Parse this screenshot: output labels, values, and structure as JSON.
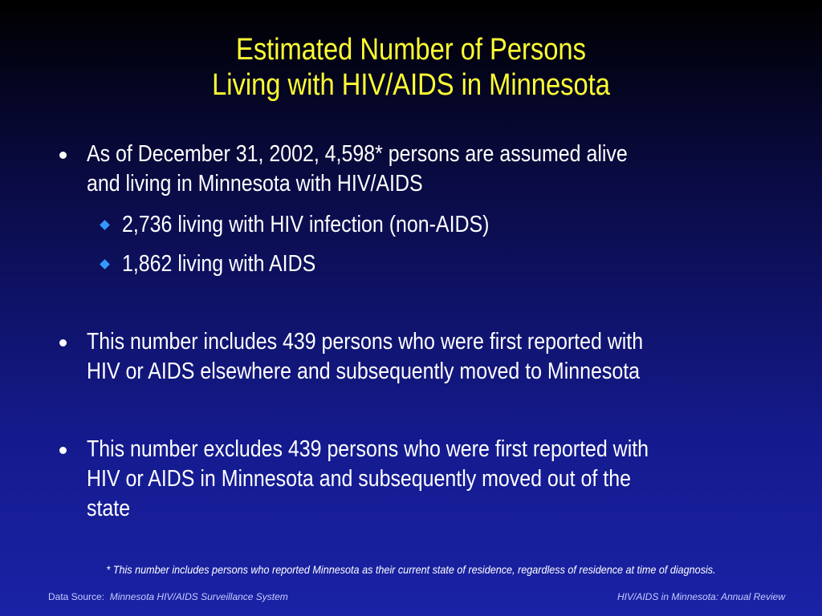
{
  "slide": {
    "title_line1": "Estimated Number of Persons",
    "title_line2": "Living with HIV/AIDS in Minnesota",
    "bullets": [
      {
        "lines": [
          "As of December 31, 2002, 4,598* persons are assumed alive",
          "and living in Minnesota with HIV/AIDS"
        ],
        "subitems": [
          "2,736 living with HIV infection (non-AIDS)",
          "1,862 living with AIDS"
        ]
      },
      {
        "lines": [
          "This number includes 439 persons who were first reported with",
          "HIV or AIDS elsewhere and subsequently moved to Minnesota"
        ]
      },
      {
        "lines": [
          "This number excludes 439 persons who were first reported with",
          "HIV or AIDS in Minnesota and subsequently moved out of the",
          "state"
        ]
      }
    ],
    "footnote": "* This number includes persons who reported Minnesota as their current state of residence, regardless of residence at time of diagnosis.",
    "source_label": "Data Source:",
    "source_value": "Minnesota HIV/AIDS Surveillance System",
    "review_label": "HIV/AIDS in Minnesota: Annual Review"
  },
  "colors": {
    "title": "#ffff33",
    "sub_bullet": "#3399ff",
    "body_text": "#ffffff"
  }
}
